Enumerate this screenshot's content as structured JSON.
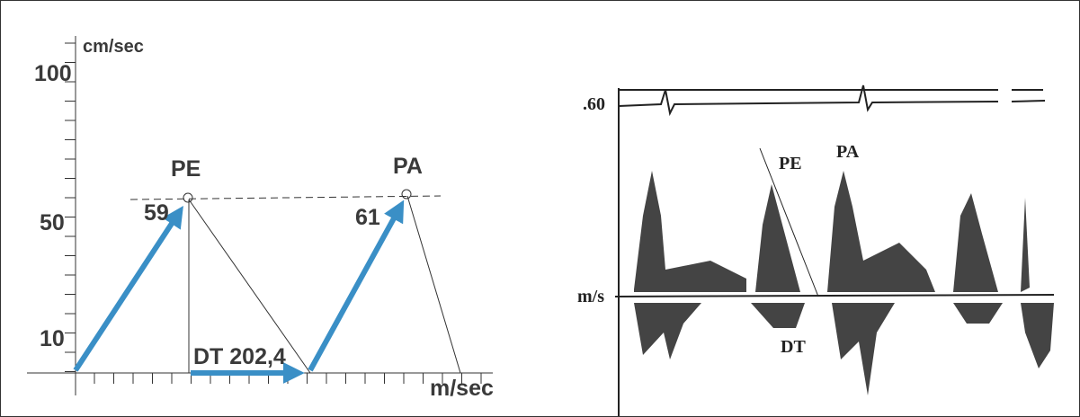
{
  "left": {
    "y_unit": "cm/sec",
    "y_labels": [
      "100",
      "50",
      "10"
    ],
    "peak_labels": [
      "PE",
      "PA"
    ],
    "peak_values": [
      "59",
      "61"
    ],
    "dt_label": "DT 202,4",
    "x_unit": "m/sec"
  },
  "right": {
    "scale_label": ".60",
    "unit_label": "m/s",
    "labels": [
      "PE",
      "PA",
      "DT"
    ]
  }
}
